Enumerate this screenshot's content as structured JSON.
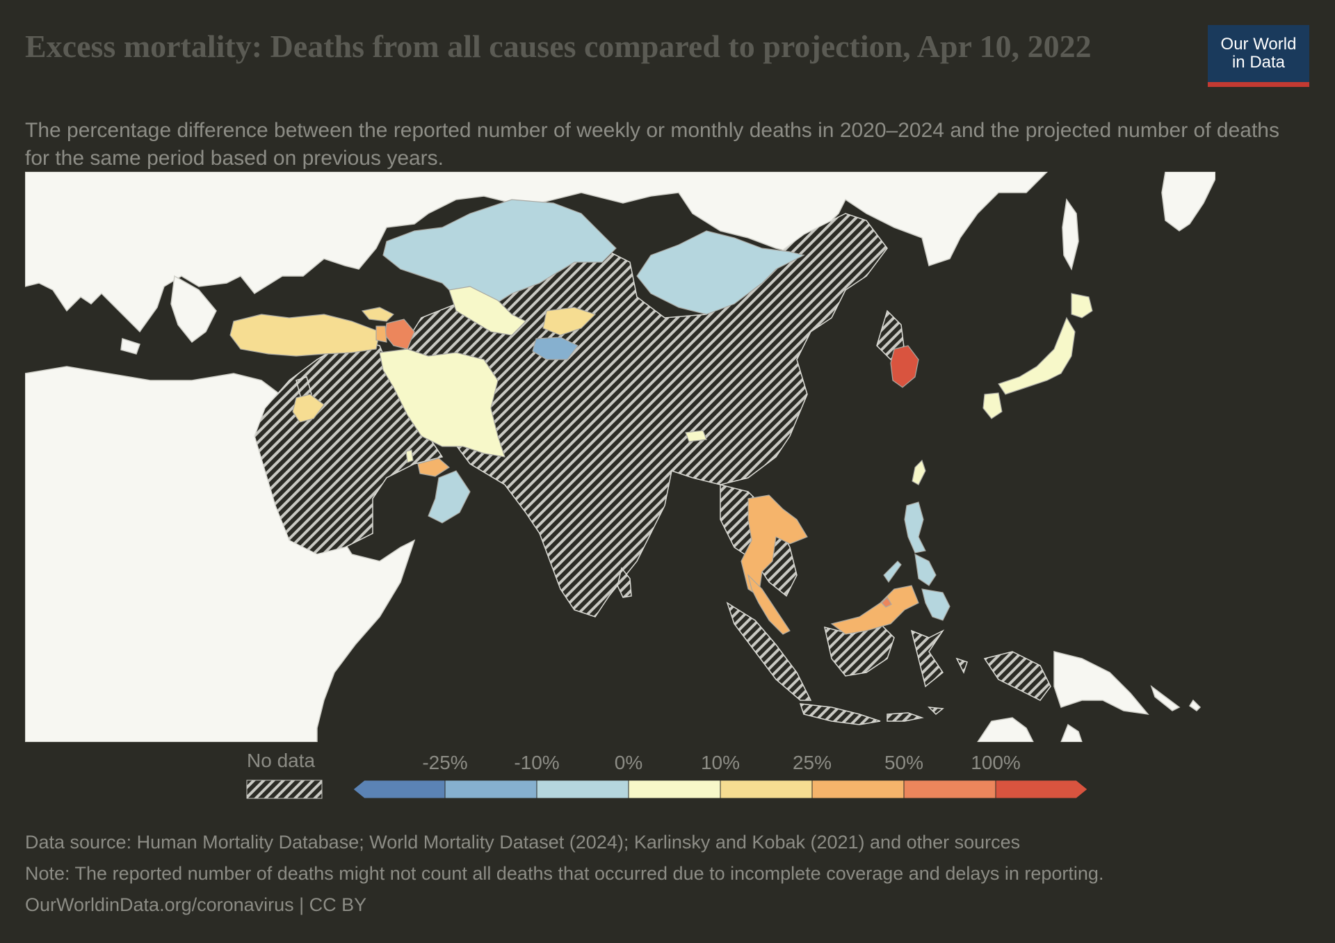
{
  "title": "Excess mortality: Deaths from all causes compared to projection, Apr 10, 2022",
  "subtitle": "The percentage difference between the reported number of weekly or monthly deaths in 2020–2024 and the projected number of deaths for the same period based on previous years.",
  "logo": {
    "line1": "Our World",
    "line2": "in Data"
  },
  "legend": {
    "no_data_label": "No data",
    "ticks": [
      "-25%",
      "-10%",
      "0%",
      "10%",
      "25%",
      "50%",
      "100%"
    ],
    "bins": [
      "#5b83b5",
      "#86b0cf",
      "#b5d6de",
      "#f7f8c9",
      "#f6dd92",
      "#f5b46b",
      "#ec865c",
      "#d9543f"
    ]
  },
  "colors": {
    "background": "#2b2b25",
    "land_other": "#f7f7f2",
    "no_data_hatch": "#c9c9c3",
    "borders": "#cfcfc8"
  },
  "regions": [
    {
      "name": "Kazakhstan",
      "bin": "0% to -10%",
      "color": "#b5d6de"
    },
    {
      "name": "Mongolia",
      "bin": "0% to -10%",
      "color": "#b5d6de"
    },
    {
      "name": "Uzbekistan",
      "bin": "0% to 10%",
      "color": "#f7f8c9"
    },
    {
      "name": "Kyrgyzstan",
      "bin": "10% to 25%",
      "color": "#f6dd92"
    },
    {
      "name": "Tajikistan",
      "bin": "-10% to -25%",
      "color": "#86b0cf"
    },
    {
      "name": "Turkey",
      "bin": "10% to 25%",
      "color": "#f6dd92"
    },
    {
      "name": "Azerbaijan",
      "bin": "50% to 100%",
      "color": "#ec865c"
    },
    {
      "name": "Georgia",
      "bin": "10% to 25%",
      "color": "#f6dd92"
    },
    {
      "name": "Armenia",
      "bin": "25% to 50%",
      "color": "#f5b46b"
    },
    {
      "name": "Iran",
      "bin": "0% to 10%",
      "color": "#f7f8c9"
    },
    {
      "name": "Lebanon",
      "bin": "10% to 25%",
      "color": "#f6dd92"
    },
    {
      "name": "Jordan",
      "bin": "10% to 25%",
      "color": "#f6dd92"
    },
    {
      "name": "Qatar",
      "bin": "0% to 10%",
      "color": "#f7f8c9"
    },
    {
      "name": "United Arab Emirates",
      "bin": "25% to 50%",
      "color": "#f5b46b"
    },
    {
      "name": "Oman",
      "bin": "0% to -10%",
      "color": "#b5d6de"
    },
    {
      "name": "Bhutan",
      "bin": "0% to 10%",
      "color": "#f7f8c9"
    },
    {
      "name": "Thailand",
      "bin": "25% to 50%",
      "color": "#f5b46b"
    },
    {
      "name": "Malaysia",
      "bin": "25% to 50%",
      "color": "#f5b46b"
    },
    {
      "name": "Brunei",
      "bin": "50% to 100%",
      "color": "#ec865c"
    },
    {
      "name": "Philippines",
      "bin": "0% to -10%",
      "color": "#b5d6de"
    },
    {
      "name": "Taiwan",
      "bin": "0% to 10%",
      "color": "#f7f8c9"
    },
    {
      "name": "South Korea",
      "bin": "> 100%",
      "color": "#d9543f"
    },
    {
      "name": "Japan",
      "bin": "0% to 10%",
      "color": "#f7f8c9"
    }
  ],
  "footer": {
    "source": "Data source: Human Mortality Database; World Mortality Dataset (2024); Karlinsky and Kobak (2021) and other sources",
    "note": "Note: The reported number of deaths might not count all deaths that occurred due to incomplete coverage and delays in reporting.",
    "url": "OurWorldinData.org/coronavirus | CC BY"
  }
}
